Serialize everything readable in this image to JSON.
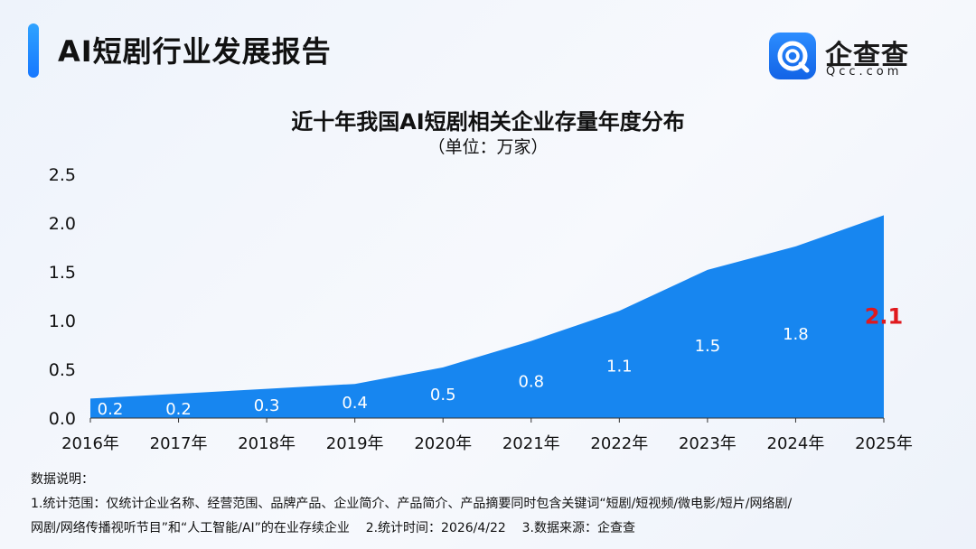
{
  "header": {
    "title": "AI短剧行业发展报告",
    "logo_name": "企查查",
    "logo_domain": "Qcc.com",
    "logo_icon": "magnifier-q-icon"
  },
  "chart_data": {
    "type": "area",
    "title": "近十年我国AI短剧相关企业存量年度分布",
    "subtitle": "（单位：万家）",
    "xlabel": "",
    "ylabel": "",
    "categories": [
      "2016年",
      "2017年",
      "2018年",
      "2019年",
      "2020年",
      "2021年",
      "2022年",
      "2023年",
      "2024年",
      "2025年"
    ],
    "values": [
      0.2,
      0.25,
      0.3,
      0.35,
      0.52,
      0.79,
      1.1,
      1.52,
      1.76,
      2.08
    ],
    "data_labels": [
      "0.2",
      "0.2",
      "0.3",
      "0.4",
      "0.5",
      "0.8",
      "1.1",
      "1.5",
      "1.8",
      "2.1"
    ],
    "highlight_label_color": "#e0191e",
    "y_ticks": [
      "0.0",
      "0.5",
      "1.0",
      "1.5",
      "2.0",
      "2.5"
    ],
    "ylim": [
      0,
      2.5
    ],
    "grid": false,
    "legend": "none",
    "area_color": "#1786f0"
  },
  "notes": {
    "heading": "数据说明：",
    "line1": "1.统计范围：仅统计企业名称、经营范围、品牌产品、企业简介、产品简介、产品摘要同时包含关键词“短剧/短视频/微电影/短片/网络剧/",
    "line2": "网剧/网络传播视听节目”和“人工智能/AI”的在业存续企业    2.统计时间：2026/4/22    3.数据来源：企查查"
  }
}
